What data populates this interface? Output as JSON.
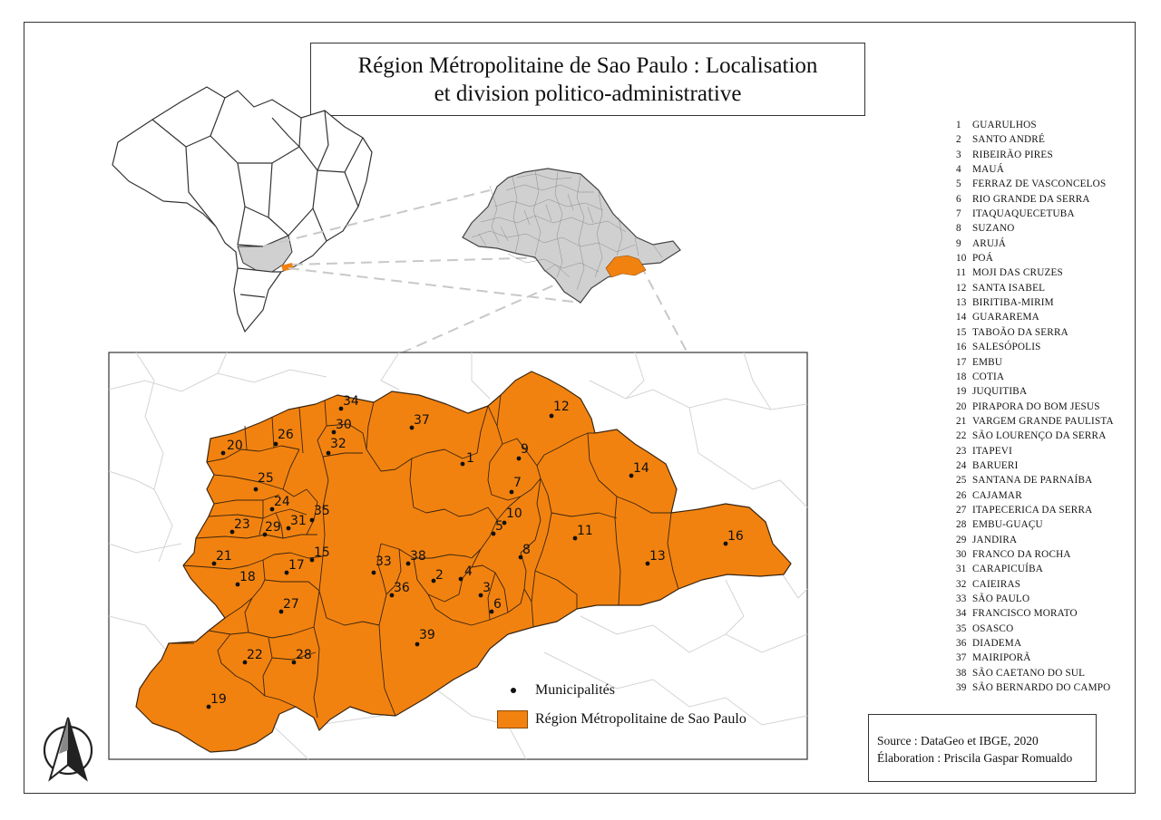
{
  "title": {
    "line1": "Région Métropolitaine de Sao Paulo : Localisation",
    "line2": "et division politico-administrative"
  },
  "municipalities": [
    {
      "num": "1",
      "name": "GUARULHOS"
    },
    {
      "num": "2",
      "name": "SANTO ANDRÉ"
    },
    {
      "num": "3",
      "name": "RIBEIRÃO PIRES"
    },
    {
      "num": "4",
      "name": "MAUÁ"
    },
    {
      "num": "5",
      "name": "FERRAZ DE VASCONCELOS"
    },
    {
      "num": "6",
      "name": "RIO GRANDE DA SERRA"
    },
    {
      "num": "7",
      "name": "ITAQUAQUECETUBA"
    },
    {
      "num": "8",
      "name": "SUZANO"
    },
    {
      "num": "9",
      "name": "ARUJÁ"
    },
    {
      "num": "10",
      "name": "POÁ"
    },
    {
      "num": "11",
      "name": "MOJI DAS CRUZES"
    },
    {
      "num": "12",
      "name": "SANTA ISABEL"
    },
    {
      "num": "13",
      "name": "BIRITIBA-MIRIM"
    },
    {
      "num": "14",
      "name": "GUARAREMA"
    },
    {
      "num": "15",
      "name": "TABOÃO DA SERRA"
    },
    {
      "num": "16",
      "name": "SALESÓPOLIS"
    },
    {
      "num": "17",
      "name": "EMBU"
    },
    {
      "num": "18",
      "name": "COTIA"
    },
    {
      "num": "19",
      "name": "JUQUITIBA"
    },
    {
      "num": "20",
      "name": "PIRAPORA DO BOM JESUS"
    },
    {
      "num": "21",
      "name": "VARGEM GRANDE PAULISTA"
    },
    {
      "num": "22",
      "name": "SÃO LOURENÇO DA SERRA"
    },
    {
      "num": "23",
      "name": "ITAPEVI"
    },
    {
      "num": "24",
      "name": "BARUERI"
    },
    {
      "num": "25",
      "name": "SANTANA DE PARNAÍBA"
    },
    {
      "num": "26",
      "name": "CAJAMAR"
    },
    {
      "num": "27",
      "name": "ITAPECERICA DA SERRA"
    },
    {
      "num": "28",
      "name": "EMBU-GUAÇU"
    },
    {
      "num": "29",
      "name": "JANDIRA"
    },
    {
      "num": "30",
      "name": "FRANCO DA ROCHA"
    },
    {
      "num": "31",
      "name": "CARAPICUÍBA"
    },
    {
      "num": "32",
      "name": "CAIEIRAS"
    },
    {
      "num": "33",
      "name": "SÃO PAULO"
    },
    {
      "num": "34",
      "name": "FRANCISCO MORATO"
    },
    {
      "num": "35",
      "name": "OSASCO"
    },
    {
      "num": "36",
      "name": "DIADEMA"
    },
    {
      "num": "37",
      "name": "MAIRIPORÃ"
    },
    {
      "num": "38",
      "name": "SÃO CAETANO DO SUL"
    },
    {
      "num": "39",
      "name": "SÃO BERNARDO DO CAMPO"
    }
  ],
  "map_legend": {
    "points_label": "Municipalités",
    "region_label": "Région Métropolitaine de Sao Paulo"
  },
  "source": {
    "line1": "Source : DataGeo et IBGE, 2020",
    "line2": "Élaboration : Priscila Gaspar Romualdo"
  },
  "colors": {
    "region_fill": "#f2820f",
    "state_fill": "#d0d0d0",
    "border": "#333333"
  },
  "icons": {
    "north_arrow": "north-arrow-icon"
  }
}
